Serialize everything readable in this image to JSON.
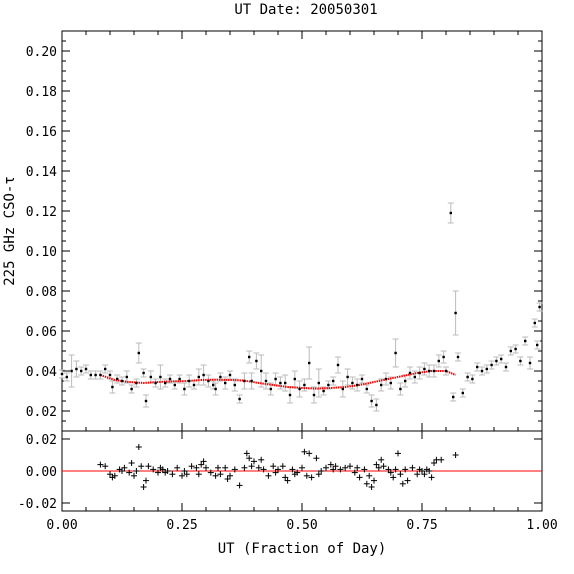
{
  "chart_data": {
    "type": "scatter",
    "title": "UT Date: 20050301",
    "xlabel": "UT (Fraction of Day)",
    "ylabel": "225 GHz CSO-τ",
    "xlim": [
      0.0,
      1.0
    ],
    "xticks": [
      0.0,
      0.25,
      0.5,
      0.75,
      1.0
    ],
    "xtick_labels": [
      "0.00",
      "0.25",
      "0.50",
      "0.75",
      "1.00"
    ],
    "main": {
      "ylim": [
        0.01,
        0.21
      ],
      "yticks": [
        0.02,
        0.04,
        0.06,
        0.08,
        0.1,
        0.12,
        0.14,
        0.16,
        0.18,
        0.2
      ],
      "ytick_labels": [
        "0.02",
        "0.04",
        "0.06",
        "0.08",
        "0.10",
        "0.12",
        "0.14",
        "0.16",
        "0.18",
        "0.20"
      ],
      "points": [
        [
          0.0,
          0.0385,
          0.002
        ],
        [
          0.01,
          0.037,
          0.002
        ],
        [
          0.02,
          0.04,
          0.008
        ],
        [
          0.03,
          0.041,
          0.004
        ],
        [
          0.04,
          0.04,
          0.002
        ],
        [
          0.05,
          0.041,
          0.002
        ],
        [
          0.06,
          0.038,
          0.002
        ],
        [
          0.07,
          0.038,
          0.002
        ],
        [
          0.08,
          0.038,
          0.002
        ],
        [
          0.09,
          0.041,
          0.002
        ],
        [
          0.1,
          0.038,
          0.002
        ],
        [
          0.105,
          0.032,
          0.003
        ],
        [
          0.115,
          0.036,
          0.002
        ],
        [
          0.125,
          0.035,
          0.002
        ],
        [
          0.135,
          0.037,
          0.003
        ],
        [
          0.145,
          0.031,
          0.002
        ],
        [
          0.155,
          0.034,
          0.002
        ],
        [
          0.16,
          0.049,
          0.005
        ],
        [
          0.17,
          0.039,
          0.002
        ],
        [
          0.175,
          0.025,
          0.003
        ],
        [
          0.185,
          0.037,
          0.003
        ],
        [
          0.195,
          0.034,
          0.002
        ],
        [
          0.205,
          0.037,
          0.006
        ],
        [
          0.215,
          0.034,
          0.002
        ],
        [
          0.225,
          0.036,
          0.002
        ],
        [
          0.235,
          0.033,
          0.002
        ],
        [
          0.245,
          0.036,
          0.002
        ],
        [
          0.255,
          0.031,
          0.003
        ],
        [
          0.265,
          0.035,
          0.003
        ],
        [
          0.275,
          0.033,
          0.002
        ],
        [
          0.285,
          0.037,
          0.004
        ],
        [
          0.295,
          0.038,
          0.005
        ],
        [
          0.305,
          0.035,
          0.003
        ],
        [
          0.315,
          0.033,
          0.002
        ],
        [
          0.32,
          0.031,
          0.003
        ],
        [
          0.33,
          0.037,
          0.002
        ],
        [
          0.34,
          0.034,
          0.003
        ],
        [
          0.35,
          0.038,
          0.002
        ],
        [
          0.36,
          0.033,
          0.003
        ],
        [
          0.37,
          0.026,
          0.002
        ],
        [
          0.38,
          0.035,
          0.004
        ],
        [
          0.39,
          0.047,
          0.003
        ],
        [
          0.395,
          0.035,
          0.004
        ],
        [
          0.405,
          0.045,
          0.004
        ],
        [
          0.415,
          0.04,
          0.008
        ],
        [
          0.425,
          0.035,
          0.004
        ],
        [
          0.435,
          0.031,
          0.003
        ],
        [
          0.445,
          0.036,
          0.003
        ],
        [
          0.455,
          0.034,
          0.003
        ],
        [
          0.465,
          0.034,
          0.004
        ],
        [
          0.475,
          0.028,
          0.004
        ],
        [
          0.485,
          0.036,
          0.004
        ],
        [
          0.495,
          0.031,
          0.004
        ],
        [
          0.505,
          0.033,
          0.003
        ],
        [
          0.515,
          0.044,
          0.008
        ],
        [
          0.525,
          0.028,
          0.004
        ],
        [
          0.535,
          0.034,
          0.007
        ],
        [
          0.545,
          0.03,
          0.002
        ],
        [
          0.555,
          0.033,
          0.002
        ],
        [
          0.565,
          0.035,
          0.002
        ],
        [
          0.575,
          0.043,
          0.004
        ],
        [
          0.585,
          0.031,
          0.004
        ],
        [
          0.595,
          0.037,
          0.004
        ],
        [
          0.605,
          0.034,
          0.003
        ],
        [
          0.615,
          0.033,
          0.003
        ],
        [
          0.625,
          0.036,
          0.002
        ],
        [
          0.635,
          0.031,
          0.002
        ],
        [
          0.645,
          0.025,
          0.003
        ],
        [
          0.655,
          0.023,
          0.003
        ],
        [
          0.665,
          0.033,
          0.003
        ],
        [
          0.675,
          0.036,
          0.003
        ],
        [
          0.685,
          0.034,
          0.003
        ],
        [
          0.695,
          0.049,
          0.007
        ],
        [
          0.705,
          0.031,
          0.003
        ],
        [
          0.715,
          0.035,
          0.003
        ],
        [
          0.725,
          0.039,
          0.003
        ],
        [
          0.735,
          0.037,
          0.003
        ],
        [
          0.745,
          0.039,
          0.003
        ],
        [
          0.755,
          0.041,
          0.003
        ],
        [
          0.765,
          0.04,
          0.003
        ],
        [
          0.775,
          0.04,
          0.003
        ],
        [
          0.785,
          0.045,
          0.003
        ],
        [
          0.795,
          0.047,
          0.003
        ],
        [
          0.8,
          0.04,
          0.002
        ],
        [
          0.81,
          0.119,
          0.005
        ],
        [
          0.815,
          0.027,
          0.002
        ],
        [
          0.82,
          0.069,
          0.011
        ],
        [
          0.825,
          0.047,
          0.002
        ],
        [
          0.835,
          0.029,
          0.002
        ],
        [
          0.845,
          0.037,
          0.002
        ],
        [
          0.855,
          0.036,
          0.002
        ],
        [
          0.865,
          0.042,
          0.002
        ],
        [
          0.875,
          0.04,
          0.002
        ],
        [
          0.885,
          0.041,
          0.002
        ],
        [
          0.895,
          0.043,
          0.002
        ],
        [
          0.905,
          0.045,
          0.002
        ],
        [
          0.915,
          0.046,
          0.002
        ],
        [
          0.925,
          0.042,
          0.002
        ],
        [
          0.935,
          0.05,
          0.002
        ],
        [
          0.945,
          0.051,
          0.002
        ],
        [
          0.955,
          0.045,
          0.002
        ],
        [
          0.965,
          0.055,
          0.002
        ],
        [
          0.975,
          0.044,
          0.003
        ],
        [
          0.985,
          0.064,
          0.002
        ],
        [
          0.99,
          0.053,
          0.002
        ],
        [
          0.995,
          0.072,
          0.002
        ]
      ],
      "fit": {
        "x_range": [
          0.08,
          0.82
        ],
        "points": [
          [
            0.08,
            0.038
          ],
          [
            0.11,
            0.0355
          ],
          [
            0.14,
            0.0345
          ],
          [
            0.17,
            0.034
          ],
          [
            0.2,
            0.0345
          ],
          [
            0.23,
            0.0348
          ],
          [
            0.26,
            0.035
          ],
          [
            0.29,
            0.0355
          ],
          [
            0.32,
            0.0357
          ],
          [
            0.35,
            0.0355
          ],
          [
            0.38,
            0.0352
          ],
          [
            0.41,
            0.034
          ],
          [
            0.44,
            0.033
          ],
          [
            0.47,
            0.032
          ],
          [
            0.5,
            0.0315
          ],
          [
            0.53,
            0.0312
          ],
          [
            0.56,
            0.0315
          ],
          [
            0.59,
            0.032
          ],
          [
            0.62,
            0.033
          ],
          [
            0.65,
            0.0345
          ],
          [
            0.68,
            0.036
          ],
          [
            0.71,
            0.0375
          ],
          [
            0.74,
            0.039
          ],
          [
            0.77,
            0.04
          ],
          [
            0.8,
            0.04
          ],
          [
            0.82,
            0.038
          ]
        ],
        "color": "#ff0000"
      }
    },
    "residuals": {
      "ylim": [
        -0.025,
        0.025
      ],
      "yticks": [
        -0.02,
        0.0,
        0.02
      ],
      "ytick_labels": [
        "-0.02",
        "0.00",
        "0.02"
      ],
      "zero_line_color": "#ff0000",
      "points": [
        [
          0.08,
          0.004
        ],
        [
          0.09,
          0.003
        ],
        [
          0.1,
          -0.002
        ],
        [
          0.105,
          -0.004
        ],
        [
          0.11,
          -0.003
        ],
        [
          0.12,
          0.001
        ],
        [
          0.125,
          0.0
        ],
        [
          0.13,
          0.002
        ],
        [
          0.14,
          -0.001
        ],
        [
          0.145,
          0.005
        ],
        [
          0.15,
          -0.003
        ],
        [
          0.155,
          0.0
        ],
        [
          0.16,
          0.015
        ],
        [
          0.165,
          0.003
        ],
        [
          0.17,
          -0.01
        ],
        [
          0.175,
          -0.006
        ],
        [
          0.18,
          0.003
        ],
        [
          0.19,
          0.001
        ],
        [
          0.2,
          -0.001
        ],
        [
          0.205,
          0.002
        ],
        [
          0.21,
          0.001
        ],
        [
          0.215,
          -0.001
        ],
        [
          0.22,
          0.0
        ],
        [
          0.23,
          -0.002
        ],
        [
          0.24,
          0.002
        ],
        [
          0.25,
          -0.003
        ],
        [
          0.255,
          0.0
        ],
        [
          0.26,
          -0.002
        ],
        [
          0.27,
          0.003
        ],
        [
          0.28,
          0.002
        ],
        [
          0.285,
          -0.002
        ],
        [
          0.29,
          0.004
        ],
        [
          0.295,
          0.006
        ],
        [
          0.3,
          0.002
        ],
        [
          0.31,
          -0.001
        ],
        [
          0.32,
          -0.003
        ],
        [
          0.325,
          0.002
        ],
        [
          0.33,
          -0.002
        ],
        [
          0.34,
          0.002
        ],
        [
          0.345,
          -0.005
        ],
        [
          0.35,
          -0.003
        ],
        [
          0.36,
          0.001
        ],
        [
          0.37,
          -0.009
        ],
        [
          0.38,
          0.002
        ],
        [
          0.385,
          0.011
        ],
        [
          0.39,
          0.008
        ],
        [
          0.395,
          0.003
        ],
        [
          0.4,
          0.006
        ],
        [
          0.41,
          0.002
        ],
        [
          0.415,
          0.007
        ],
        [
          0.42,
          0.001
        ],
        [
          0.43,
          -0.003
        ],
        [
          0.44,
          0.003
        ],
        [
          0.445,
          -0.001
        ],
        [
          0.45,
          0.001
        ],
        [
          0.46,
          0.003
        ],
        [
          0.465,
          -0.004
        ],
        [
          0.47,
          -0.006
        ],
        [
          0.48,
          0.001
        ],
        [
          0.485,
          -0.002
        ],
        [
          0.49,
          -0.001
        ],
        [
          0.5,
          0.002
        ],
        [
          0.505,
          0.012
        ],
        [
          0.51,
          -0.003
        ],
        [
          0.515,
          0.011
        ],
        [
          0.52,
          -0.004
        ],
        [
          0.53,
          0.008
        ],
        [
          0.535,
          -0.002
        ],
        [
          0.54,
          0.0
        ],
        [
          0.55,
          0.002
        ],
        [
          0.56,
          0.004
        ],
        [
          0.565,
          0.001
        ],
        [
          0.57,
          0.003
        ],
        [
          0.58,
          0.001
        ],
        [
          0.59,
          0.002
        ],
        [
          0.6,
          0.003
        ],
        [
          0.61,
          -0.001
        ],
        [
          0.615,
          0.002
        ],
        [
          0.62,
          -0.004
        ],
        [
          0.63,
          0.001
        ],
        [
          0.635,
          -0.008
        ],
        [
          0.64,
          -0.003
        ],
        [
          0.645,
          -0.01
        ],
        [
          0.65,
          -0.006
        ],
        [
          0.655,
          0.004
        ],
        [
          0.66,
          0.002
        ],
        [
          0.665,
          0.007
        ],
        [
          0.67,
          0.003
        ],
        [
          0.68,
          0.001
        ],
        [
          0.685,
          -0.001
        ],
        [
          0.69,
          -0.004
        ],
        [
          0.695,
          0.001
        ],
        [
          0.7,
          0.011
        ],
        [
          0.705,
          -0.002
        ],
        [
          0.71,
          -0.008
        ],
        [
          0.715,
          0.001
        ],
        [
          0.72,
          -0.006
        ],
        [
          0.73,
          0.002
        ],
        [
          0.74,
          -0.002
        ],
        [
          0.745,
          0.001
        ],
        [
          0.75,
          0.0
        ],
        [
          0.755,
          -0.002
        ],
        [
          0.76,
          0.001
        ],
        [
          0.765,
          0.0
        ],
        [
          0.77,
          -0.004
        ],
        [
          0.775,
          0.005
        ],
        [
          0.78,
          0.007
        ],
        [
          0.79,
          0.007
        ],
        [
          0.82,
          0.01
        ]
      ]
    },
    "grid": false,
    "errorbar_color": "#bbbbbb",
    "point_color": "#000000"
  }
}
